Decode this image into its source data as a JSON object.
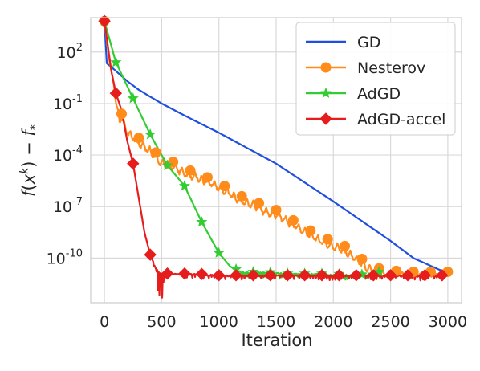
{
  "chart_data": {
    "type": "line",
    "xlabel": "Iteration",
    "ylabel": "f(x^k) − f_*",
    "xscale": "linear",
    "yscale": "log",
    "xlim": [
      -120,
      3120
    ],
    "ylim_log10": [
      -12.6,
      4
    ],
    "xticks": [
      0,
      500,
      1000,
      1500,
      2000,
      2500,
      3000
    ],
    "xtick_labels": [
      "0",
      "500",
      "1000",
      "1500",
      "2000",
      "2500",
      "3000"
    ],
    "yticks_log10": [
      2,
      -1,
      -4,
      -7,
      -10
    ],
    "ytick_labels": [
      {
        "base": "10",
        "exp": "2"
      },
      {
        "base": "10",
        "exp": "-1"
      },
      {
        "base": "10",
        "exp": "-4"
      },
      {
        "base": "10",
        "exp": "-7"
      },
      {
        "base": "10",
        "exp": "-10"
      }
    ],
    "grid": true,
    "legend_position": "top-right",
    "series": [
      {
        "name": "GD",
        "color": "#1f4fe0",
        "marker": "none",
        "log10_points": [
          [
            0,
            3.8
          ],
          [
            10,
            1.4
          ],
          [
            100,
            0.9
          ],
          [
            200,
            0.3
          ],
          [
            300,
            -0.2
          ],
          [
            400,
            -0.6
          ],
          [
            500,
            -1.0
          ],
          [
            700,
            -1.7
          ],
          [
            1000,
            -2.7
          ],
          [
            1500,
            -4.5
          ],
          [
            2000,
            -6.7
          ],
          [
            2500,
            -9.0
          ],
          [
            2700,
            -10.0
          ],
          [
            2900,
            -10.6
          ],
          [
            3000,
            -10.9
          ]
        ]
      },
      {
        "name": "Nesterov",
        "color": "#ff8c1a",
        "marker": "circle",
        "marker_x": [
          0,
          150,
          300,
          450,
          600,
          750,
          900,
          1050,
          1200,
          1350,
          1500,
          1650,
          1800,
          1950,
          2100,
          2250,
          2400,
          2550,
          2700,
          2850,
          3000
        ],
        "log10_points": [
          [
            0,
            3.8
          ],
          [
            40,
            1.6
          ],
          [
            80,
            0.2
          ],
          [
            100,
            -1.0
          ],
          [
            130,
            -1.6
          ],
          [
            150,
            -1.6
          ],
          [
            200,
            -2.4
          ],
          [
            300,
            -3.0
          ],
          [
            400,
            -3.5
          ],
          [
            500,
            -4.2
          ],
          [
            600,
            -4.4
          ],
          [
            700,
            -4.8
          ],
          [
            800,
            -5.0
          ],
          [
            900,
            -5.3
          ],
          [
            1000,
            -5.6
          ],
          [
            1100,
            -6.0
          ],
          [
            1200,
            -6.4
          ],
          [
            1300,
            -6.6
          ],
          [
            1400,
            -7.0
          ],
          [
            1500,
            -7.2
          ],
          [
            1600,
            -7.6
          ],
          [
            1700,
            -8.0
          ],
          [
            1800,
            -8.4
          ],
          [
            1900,
            -8.8
          ],
          [
            2000,
            -9.0
          ],
          [
            2100,
            -9.3
          ],
          [
            2200,
            -9.8
          ],
          [
            2300,
            -10.3
          ],
          [
            2400,
            -10.6
          ],
          [
            2500,
            -10.7
          ],
          [
            2600,
            -10.8
          ],
          [
            2800,
            -10.8
          ],
          [
            3000,
            -10.8
          ]
        ]
      },
      {
        "name": "AdGD",
        "color": "#33cc33",
        "marker": "star",
        "marker_x": [
          0,
          100,
          250,
          400,
          550,
          700,
          850,
          1000,
          1150,
          1300,
          1450,
          1600,
          1750,
          1900,
          2050,
          2250,
          2400
        ],
        "log10_points": [
          [
            0,
            3.8
          ],
          [
            100,
            1.4
          ],
          [
            250,
            -0.7
          ],
          [
            400,
            -2.8
          ],
          [
            550,
            -4.6
          ],
          [
            700,
            -5.8
          ],
          [
            850,
            -7.9
          ],
          [
            1000,
            -9.7
          ],
          [
            1100,
            -10.5
          ],
          [
            1200,
            -10.8
          ],
          [
            1400,
            -10.8
          ],
          [
            1600,
            -10.9
          ],
          [
            1800,
            -10.9
          ],
          [
            2000,
            -10.9
          ],
          [
            2200,
            -11.0
          ],
          [
            2400,
            -10.8
          ]
        ]
      },
      {
        "name": "AdGD-accel",
        "color": "#e51d1d",
        "marker": "diamond",
        "marker_x": [
          0,
          100,
          250,
          400,
          550,
          700,
          850,
          1000,
          1150,
          1300,
          1450,
          1600,
          1750,
          1900,
          2050,
          2200,
          2350,
          2500,
          2650,
          2800,
          2950
        ],
        "log10_points": [
          [
            0,
            3.8
          ],
          [
            60,
            0.9
          ],
          [
            100,
            -0.4
          ],
          [
            150,
            -1.4
          ],
          [
            200,
            -3.2
          ],
          [
            250,
            -4.5
          ],
          [
            300,
            -6.5
          ],
          [
            350,
            -8.5
          ],
          [
            400,
            -9.8
          ],
          [
            450,
            -10.6
          ],
          [
            500,
            -10.9
          ],
          [
            600,
            -10.9
          ],
          [
            800,
            -10.9
          ],
          [
            1000,
            -11.0
          ],
          [
            1500,
            -11.0
          ],
          [
            2000,
            -11.0
          ],
          [
            2500,
            -11.0
          ],
          [
            3000,
            -11.0
          ]
        ]
      }
    ]
  }
}
